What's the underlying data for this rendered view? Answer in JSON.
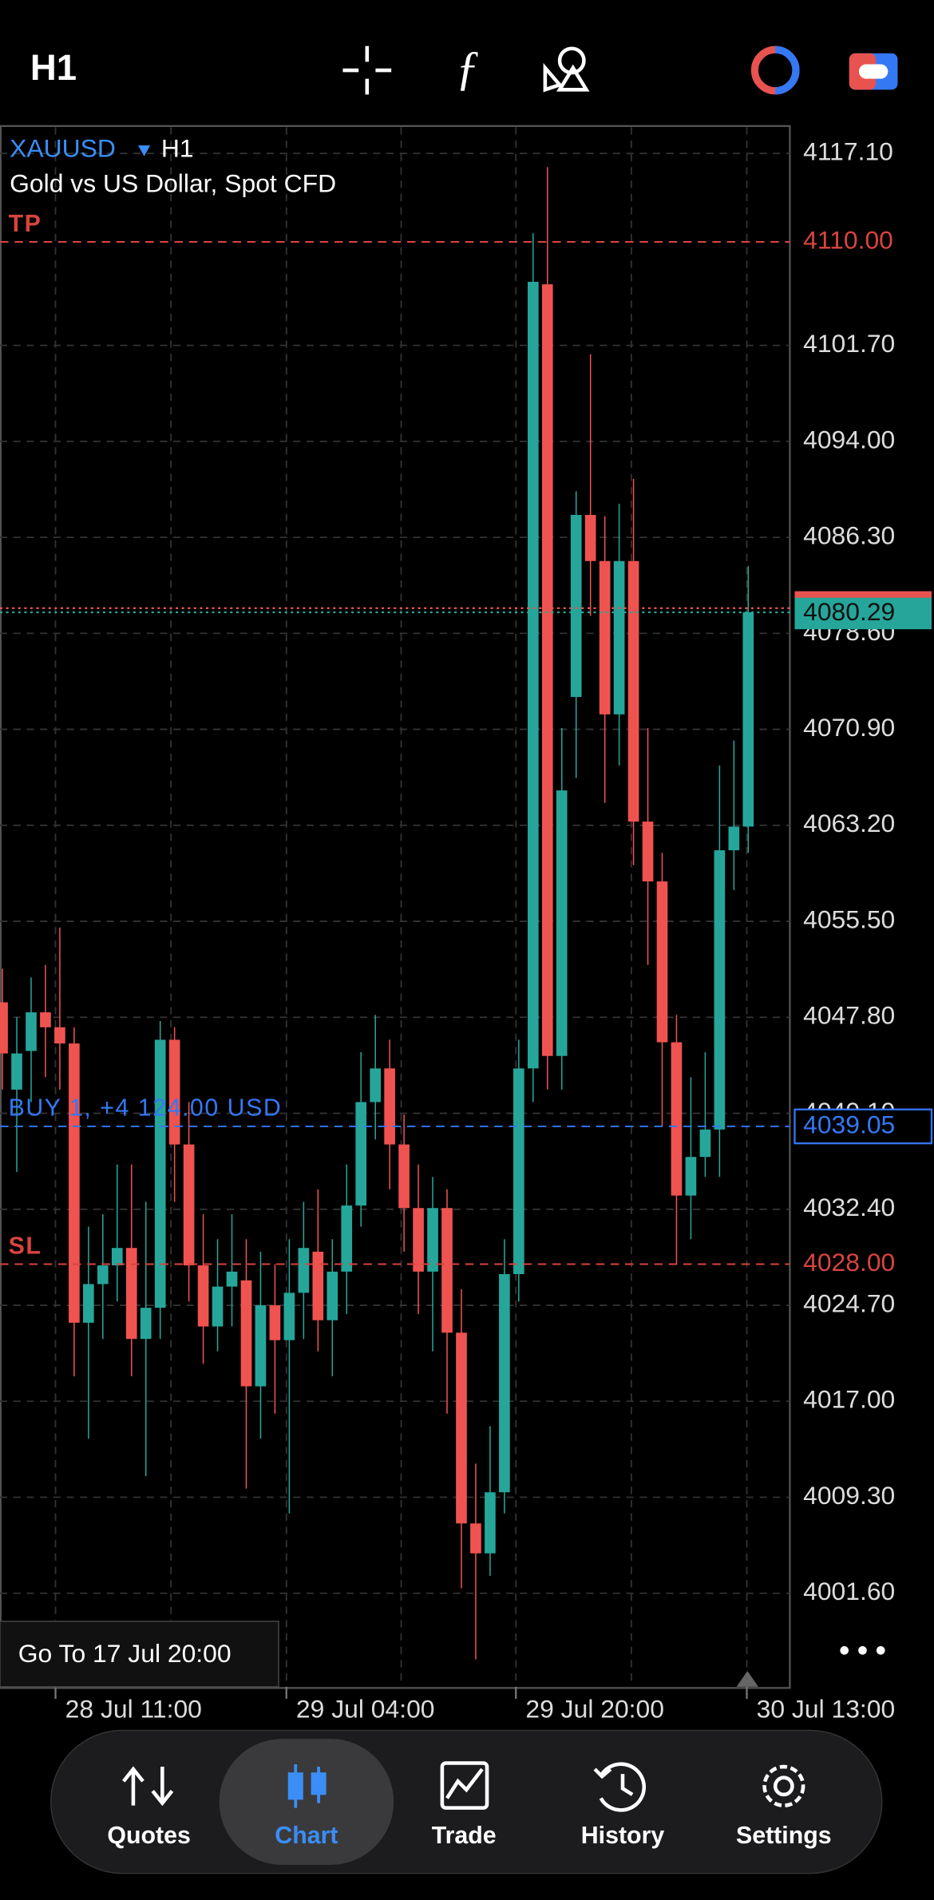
{
  "header": {
    "timeframe": "H1"
  },
  "chart_data": {
    "type": "candlestick",
    "symbol": "XAUUSD",
    "timeframe": "H1",
    "description": "Gold vs US Dollar, Spot CFD",
    "open": [
      4049.0,
      4042.0,
      4045.1,
      4048.2,
      4047.0,
      4045.7,
      4023.3,
      4026.4,
      4027.9,
      4029.3,
      4022.0,
      4024.5,
      4046.0,
      4037.6,
      4027.9,
      4023.0,
      4026.2,
      4026.7,
      4018.2,
      4024.7,
      4021.9,
      4025.7,
      4029.0,
      4023.5,
      4027.4,
      4032.7,
      4041.0,
      4043.7,
      4037.6,
      4032.5,
      4027.4,
      4032.5,
      4022.5,
      4007.2,
      4004.8,
      4009.7,
      4027.2,
      4043.7,
      4106.6,
      4044.7,
      4073.5,
      4088.1,
      4084.4,
      4072.1,
      4084.4,
      4063.5,
      4058.7,
      4045.8,
      4033.5,
      4036.6,
      4038.8,
      4061.2,
      4063.1
    ],
    "high": [
      4051.7,
      4047.8,
      4051.0,
      4052.0,
      4055.0,
      4047.0,
      4031.0,
      4032.0,
      4036.0,
      4036.0,
      4033.0,
      4047.5,
      4047.0,
      4041.0,
      4032.0,
      4030.0,
      4032.0,
      4030.0,
      4029.0,
      4028.0,
      4030.0,
      4033.0,
      4034.0,
      4030.0,
      4036.0,
      4045.0,
      4048.0,
      4046.0,
      4040.0,
      4036.0,
      4035.0,
      4034.0,
      4026.0,
      4012.0,
      4015.0,
      4030.0,
      4046.0,
      4110.7,
      4116.0,
      4071.0,
      4090.0,
      4101.0,
      4088.0,
      4089.0,
      4091.0,
      4071.0,
      4061.0,
      4048.0,
      4043.0,
      4045.0,
      4068.0,
      4070.0,
      4084.0
    ],
    "low": [
      4042.0,
      4035.4,
      4041.0,
      4043.0,
      4042.0,
      4019.0,
      4014.0,
      4022.0,
      4025.0,
      4019.0,
      4011.0,
      4022.0,
      4033.0,
      4025.0,
      4020.0,
      4021.0,
      4023.0,
      4010.0,
      4014.0,
      4016.0,
      4008.0,
      4022.0,
      4021.0,
      4019.0,
      4024.0,
      4031.0,
      4038.0,
      4034.0,
      4029.0,
      4024.0,
      4021.0,
      4016.0,
      4002.0,
      3996.3,
      4003.0,
      4008.0,
      4025.0,
      4041.0,
      4042.0,
      4042.0,
      4067.0,
      4080.0,
      4065.0,
      4068.0,
      4060.0,
      4052.0,
      4039.0,
      4028.0,
      4030.0,
      4035.0,
      4035.0,
      4058.0,
      4061.0
    ],
    "close": [
      4044.9,
      4044.9,
      4048.2,
      4047.0,
      4045.7,
      4023.3,
      4026.4,
      4027.9,
      4029.3,
      4022.0,
      4024.5,
      4046.0,
      4037.6,
      4027.9,
      4023.0,
      4026.2,
      4027.4,
      4018.2,
      4024.7,
      4021.9,
      4025.7,
      4029.3,
      4023.5,
      4027.4,
      4032.7,
      4041.0,
      4043.7,
      4037.6,
      4032.5,
      4027.4,
      4032.5,
      4022.5,
      4007.2,
      4004.8,
      4009.7,
      4027.2,
      4043.7,
      4106.8,
      4044.7,
      4066.0,
      4088.1,
      4084.4,
      4072.1,
      4084.4,
      4063.5,
      4058.7,
      4045.8,
      4033.5,
      4036.6,
      4038.8,
      4061.2,
      4063.1,
      4080.29
    ],
    "up_color": "#26a69a",
    "down_color": "#ef5350",
    "ylim": [
      3994.1,
      4119.2
    ],
    "yticks": [
      {
        "value": 4117.1,
        "label": "4117.10"
      },
      {
        "value": 4101.7,
        "label": "4101.70"
      },
      {
        "value": 4094,
        "label": "4094.00"
      },
      {
        "value": 4086.3,
        "label": "4086.30"
      },
      {
        "value": 4078.6,
        "label": "4078.60"
      },
      {
        "value": 4070.9,
        "label": "4070.90"
      },
      {
        "value": 4063.2,
        "label": "4063.20"
      },
      {
        "value": 4055.5,
        "label": "4055.50"
      },
      {
        "value": 4047.8,
        "label": "4047.80"
      },
      {
        "value": 4040.1,
        "label": "4040.10"
      },
      {
        "value": 4032.4,
        "label": "4032.40"
      },
      {
        "value": 4024.7,
        "label": "4024.70"
      },
      {
        "value": 4017,
        "label": "4017.00"
      },
      {
        "value": 4009.3,
        "label": "4009.30"
      },
      {
        "value": 4001.6,
        "label": "4001.60"
      }
    ],
    "xlim": [
      -0.17,
      54.9
    ],
    "xticks": [
      {
        "value": 3.7,
        "label": "28 Jul 11:00"
      },
      {
        "value": 19.8,
        "label": "29 Jul 04:00"
      },
      {
        "value": 35.8,
        "label": "29 Jul 20:00"
      },
      {
        "value": 51.9,
        "label": "30 Jul 13:00"
      }
    ],
    "grid": true,
    "levels": [
      {
        "name": "TP",
        "value": 4110,
        "label": "4110.00",
        "color": "#d9443f"
      },
      {
        "name": "SL",
        "value": 4028,
        "label": "4028.00",
        "color": "#d9443f"
      },
      {
        "name": "BUY 1, +4 124.00 USD",
        "value": 4039.05,
        "color": "#3478f6"
      }
    ],
    "ask": 4080.62,
    "ask_color": "#e8534f",
    "bid": 4080.29,
    "bid_color": "#26a69a",
    "goto": "Go To 17 Jul 20:00"
  },
  "nav": [
    {
      "label": "Quotes"
    },
    {
      "label": "Chart"
    },
    {
      "label": "Trade"
    },
    {
      "label": "History"
    },
    {
      "label": "Settings"
    }
  ]
}
